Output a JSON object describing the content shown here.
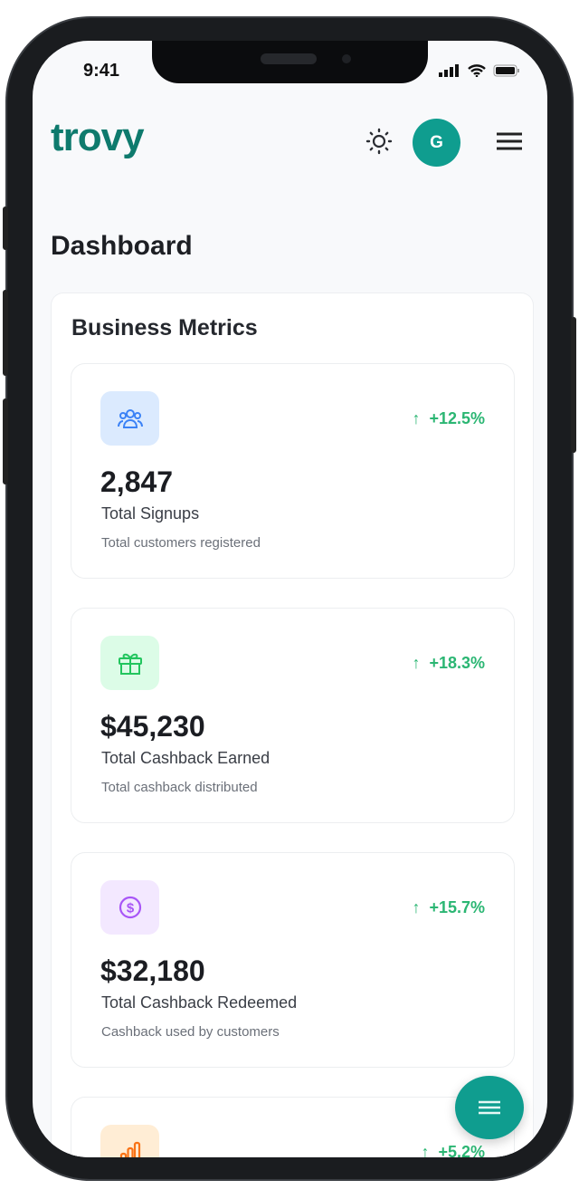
{
  "status_bar": {
    "time": "9:41"
  },
  "header": {
    "logo": "trovy",
    "avatar_initial": "G"
  },
  "page_title": "Dashboard",
  "section_title": "Business Metrics",
  "colors": {
    "brand": "#0e7a6d",
    "accent": "#0f9d8f",
    "trend_up": "#2bb673"
  },
  "metrics": [
    {
      "icon": "users-icon",
      "value": "2,847",
      "label": "Total Signups",
      "description": "Total customers registered",
      "trend": "+12.5%",
      "icon_bg": "#dbeafe",
      "icon_color": "#3b82f6"
    },
    {
      "icon": "gift-icon",
      "value": "$45,230",
      "label": "Total Cashback Earned",
      "description": "Total cashback distributed",
      "trend": "+18.3%",
      "icon_bg": "#dcfce7",
      "icon_color": "#22c55e"
    },
    {
      "icon": "dollar-circle-icon",
      "value": "$32,180",
      "label": "Total Cashback Redeemed",
      "description": "Cashback used by customers",
      "trend": "+15.7%",
      "icon_bg": "#f3e8ff",
      "icon_color": "#a855f7"
    },
    {
      "icon": "bar-chart-icon",
      "trend": "+5.2%",
      "icon_bg": "#ffedd5",
      "icon_color": "#f97316"
    }
  ]
}
